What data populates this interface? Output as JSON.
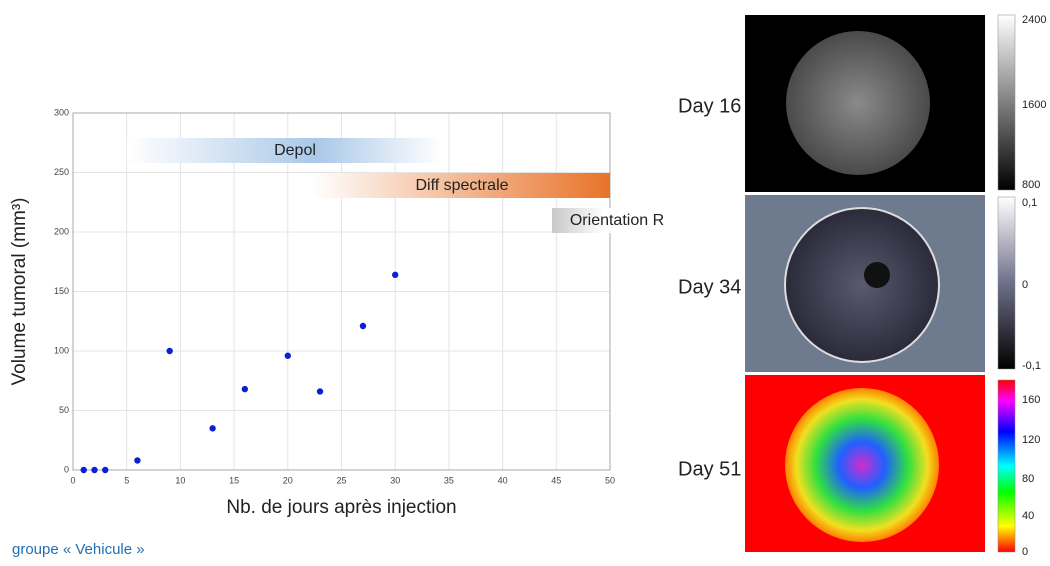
{
  "chart_data": {
    "type": "scatter",
    "x_label": "Nb. de jours après injection",
    "y_label": "Volume tumoral (mm³)",
    "x": [
      1,
      2,
      3,
      6,
      9,
      13,
      16,
      20,
      23,
      27,
      30
    ],
    "values": [
      0,
      0,
      0,
      8,
      100,
      35,
      68,
      96,
      66,
      121,
      164
    ],
    "color": "#0a1fd6",
    "xlim": [
      0,
      50
    ],
    "xticks": [
      0,
      5,
      10,
      15,
      20,
      25,
      30,
      35,
      40,
      45,
      50
    ],
    "ylim": [
      0,
      300
    ],
    "yticks": [
      0,
      50,
      100,
      150,
      200,
      250,
      300
    ],
    "grid": true,
    "annotations": [
      "Depol",
      "Diff spectrale",
      "Orientation R"
    ]
  },
  "panels": [
    {
      "label": "Day 16",
      "colorbar": [
        "2400",
        "1600",
        "800"
      ]
    },
    {
      "label": "Day 34",
      "colorbar": [
        "0,1",
        "0",
        "-0,1"
      ]
    },
    {
      "label": "Day 51",
      "colorbar": [
        "160",
        "120",
        "80",
        "40",
        "0"
      ]
    }
  ],
  "footer": "groupe « Vehicule »"
}
